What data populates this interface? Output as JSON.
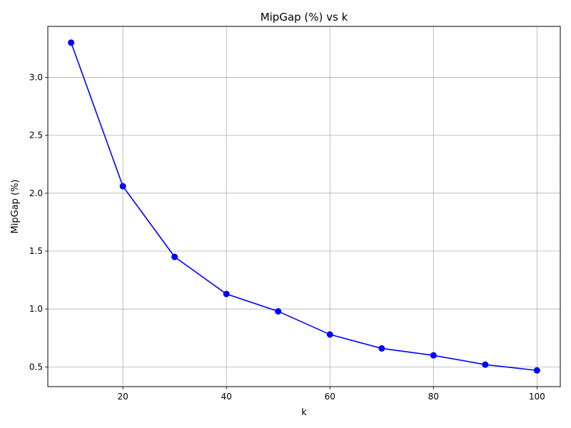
{
  "chart_data": {
    "type": "line",
    "title": "MipGap (%) vs k",
    "xlabel": "k",
    "ylabel": "MipGap (%)",
    "x": [
      10,
      20,
      30,
      40,
      50,
      60,
      70,
      80,
      90,
      100
    ],
    "series": [
      {
        "values": [
          3.3,
          2.06,
          1.45,
          1.13,
          0.98,
          0.78,
          0.66,
          0.6,
          0.52,
          0.47
        ],
        "color": "#0000ff",
        "marker": "circle"
      }
    ],
    "xlim": [
      5.5,
      104.5
    ],
    "ylim": [
      0.33,
      3.44
    ],
    "xticks": [
      20,
      40,
      60,
      80,
      100
    ],
    "yticks": [
      0.5,
      1.0,
      1.5,
      2.0,
      2.5,
      3.0
    ],
    "xtick_labels": [
      "20",
      "40",
      "60",
      "80",
      "100"
    ],
    "ytick_labels": [
      "0.5",
      "1.0",
      "1.5",
      "2.0",
      "2.5",
      "3.0"
    ],
    "grid": true,
    "legend": "none"
  }
}
